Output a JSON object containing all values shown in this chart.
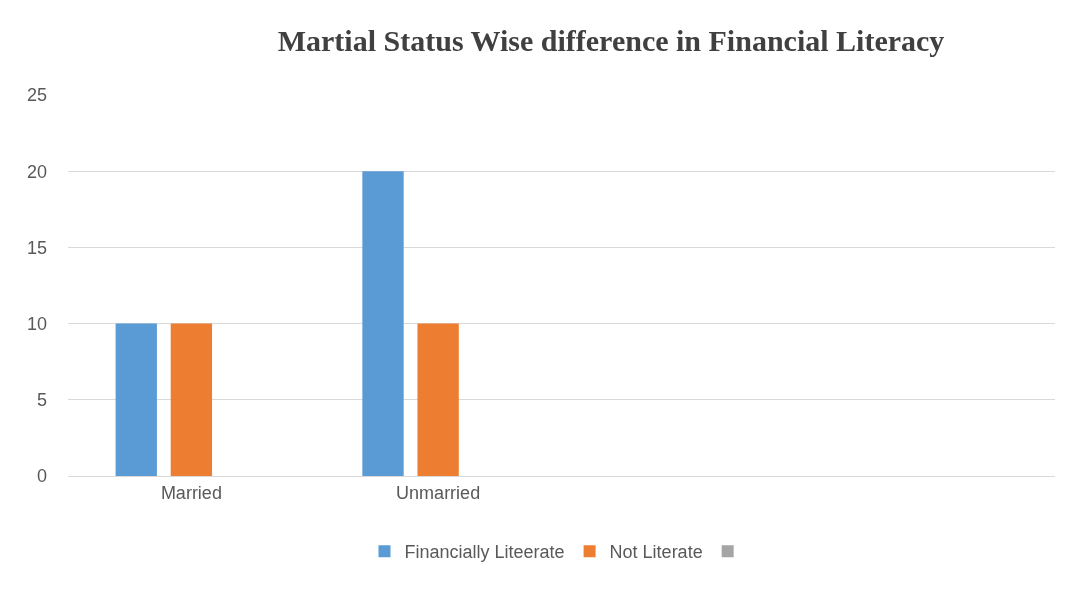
{
  "chart_data": {
    "type": "bar",
    "title": "Martial Status Wise difference in Financial Literacy",
    "categories": [
      "Married",
      "Unmarried",
      null,
      null
    ],
    "series": [
      {
        "name": "Financially Liteerate",
        "color": "#5b9bd5",
        "values": [
          10,
          20,
          null,
          null
        ]
      },
      {
        "name": "Not Literate",
        "color": "#ed7d31",
        "values": [
          10,
          10,
          null,
          null
        ]
      },
      {
        "color": "#a5a5a5",
        "values": [
          null,
          null,
          null,
          null
        ]
      }
    ],
    "ylim": [
      0,
      25
    ],
    "yticks": [
      0,
      5,
      10,
      15,
      20,
      25
    ],
    "grid": "y",
    "legend": "bottom"
  }
}
